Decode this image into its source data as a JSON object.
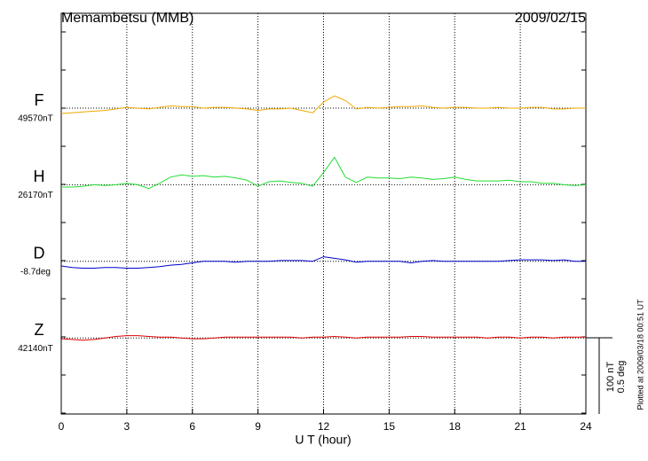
{
  "chart_data": {
    "type": "line",
    "title": "Memambetsu (MMB)",
    "date": "2009/02/15",
    "xlabel": "U T (hour)",
    "footnote": "Plotted at 2009/03/18 00:51 UT",
    "xlim": [
      0,
      24
    ],
    "xticks": [
      0,
      3,
      6,
      9,
      12,
      15,
      18,
      21,
      24
    ],
    "grid": true,
    "scale_bar": {
      "value": 100,
      "label": "100 nT",
      "deg_value": 0.5,
      "deg_label": "0.5 deg"
    },
    "x": [
      0,
      0.5,
      1,
      1.5,
      2,
      2.5,
      3,
      3.5,
      4,
      4.5,
      5,
      5.5,
      6,
      6.5,
      7,
      7.5,
      8,
      8.5,
      9,
      9.5,
      10,
      10.5,
      11,
      11.5,
      12,
      12.5,
      13,
      13.5,
      14,
      14.5,
      15,
      15.5,
      16,
      16.5,
      17,
      17.5,
      18,
      18.5,
      19,
      19.5,
      20,
      20.5,
      21,
      21.5,
      22,
      22.5,
      23,
      23.5,
      24
    ],
    "series": [
      {
        "name": "F",
        "baseline_label": "49570nT",
        "color": "#f0a800",
        "values": [
          -7,
          -6,
          -5,
          -4,
          -3,
          -1,
          1,
          0,
          -1,
          1,
          3,
          2,
          2,
          0,
          1,
          1,
          0,
          -1,
          -3,
          -1,
          -1,
          0,
          -3,
          -6,
          8,
          16,
          10,
          -1,
          1,
          0,
          1,
          2,
          2,
          3,
          1,
          0,
          1,
          1,
          0,
          0,
          1,
          0,
          0,
          1,
          1,
          -1,
          -1,
          0,
          0
        ]
      },
      {
        "name": "H",
        "baseline_label": "26170nT",
        "color": "#22dd33",
        "values": [
          -3,
          -3,
          -2,
          0,
          -1,
          0,
          2,
          0,
          -5,
          2,
          10,
          13,
          11,
          12,
          10,
          11,
          9,
          6,
          -2,
          4,
          5,
          3,
          2,
          -2,
          16,
          36,
          10,
          3,
          10,
          9,
          9,
          8,
          10,
          9,
          7,
          8,
          10,
          7,
          5,
          5,
          5,
          6,
          4,
          4,
          2,
          2,
          0,
          -1,
          0
        ]
      },
      {
        "name": "D",
        "baseline_label": "-8.7deg",
        "color": "#0000cc",
        "axis": "deg",
        "values": [
          -0.03,
          -0.04,
          -0.045,
          -0.045,
          -0.04,
          -0.04,
          -0.045,
          -0.045,
          -0.04,
          -0.035,
          -0.025,
          -0.02,
          -0.01,
          0,
          0,
          0,
          -0.005,
          0,
          0,
          0,
          0.005,
          0.005,
          0.005,
          0,
          0.03,
          0.02,
          0.01,
          -0.005,
          0,
          0,
          0,
          0,
          -0.01,
          0,
          0.005,
          0,
          0,
          0,
          0,
          0,
          0,
          0.005,
          0.01,
          0.01,
          0.01,
          0.005,
          0.01,
          0,
          0
        ]
      },
      {
        "name": "Z",
        "baseline_label": "42140nT",
        "color": "#dd0000",
        "values": [
          -1,
          -2,
          -3,
          -2,
          0,
          2,
          3,
          3,
          2,
          1,
          1,
          0,
          -1,
          -1,
          0,
          1,
          1,
          1,
          1,
          1,
          1,
          1,
          0,
          1,
          1,
          2,
          1,
          0,
          1,
          1,
          1,
          1,
          2,
          2,
          1,
          1,
          1,
          1,
          1,
          0,
          1,
          1,
          0,
          1,
          1,
          0,
          1,
          1,
          1
        ]
      }
    ]
  }
}
